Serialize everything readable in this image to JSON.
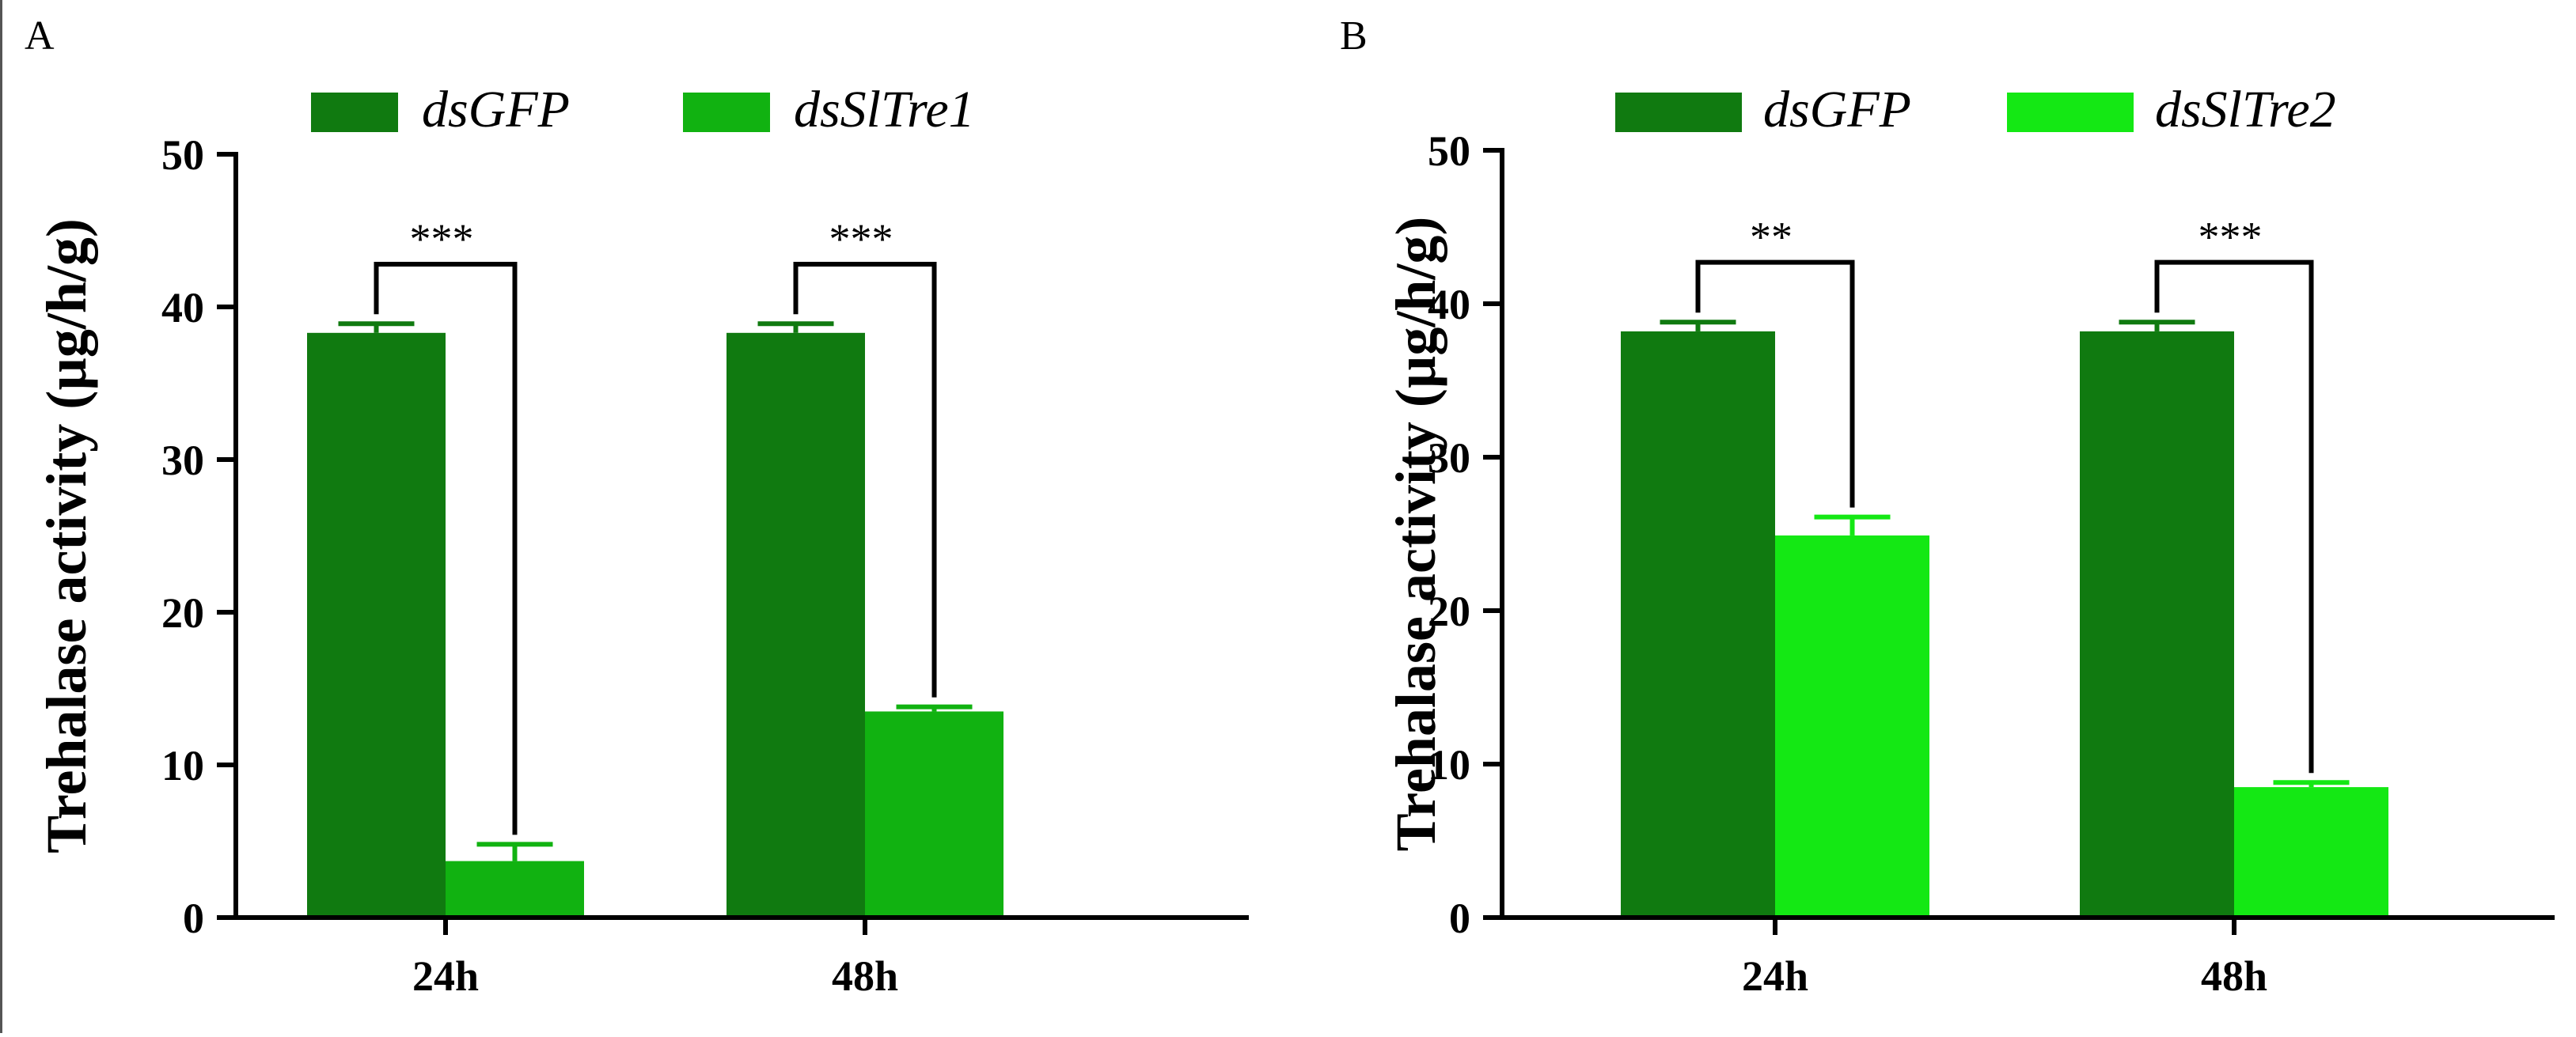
{
  "chart_data": [
    {
      "type": "bar",
      "panel_label": "A",
      "categories": [
        "24h",
        "48h"
      ],
      "series": [
        {
          "name": "dsGFP",
          "color": "#107a10",
          "values": [
            38.3,
            38.3
          ],
          "errors": [
            0.6,
            0.6
          ]
        },
        {
          "name": "dsSlTre1",
          "color": "#11b211",
          "values": [
            3.7,
            13.5
          ],
          "errors": [
            1.1,
            0.3
          ]
        }
      ],
      "significance": [
        "***",
        "***"
      ],
      "ylabel": "Trehalase activity (µg/h/g)",
      "xlabel": "",
      "ylim": [
        0,
        50
      ],
      "yticks": [
        0,
        10,
        20,
        30,
        40,
        50
      ],
      "legend_position": "top"
    },
    {
      "type": "bar",
      "panel_label": "B",
      "categories": [
        "24h",
        "48h"
      ],
      "series": [
        {
          "name": "dsGFP",
          "color": "#107a10",
          "values": [
            38.2,
            38.2
          ],
          "errors": [
            0.6,
            0.6
          ]
        },
        {
          "name": "dsSlTre2",
          "color": "#14e814",
          "values": [
            24.9,
            8.5
          ],
          "errors": [
            1.2,
            0.3
          ]
        }
      ],
      "significance": [
        "**",
        "***"
      ],
      "ylabel": "Trehalase activity (µg/h/g)",
      "xlabel": "",
      "ylim": [
        0,
        50
      ],
      "yticks": [
        0,
        10,
        20,
        30,
        40,
        50
      ],
      "legend_position": "top"
    }
  ]
}
